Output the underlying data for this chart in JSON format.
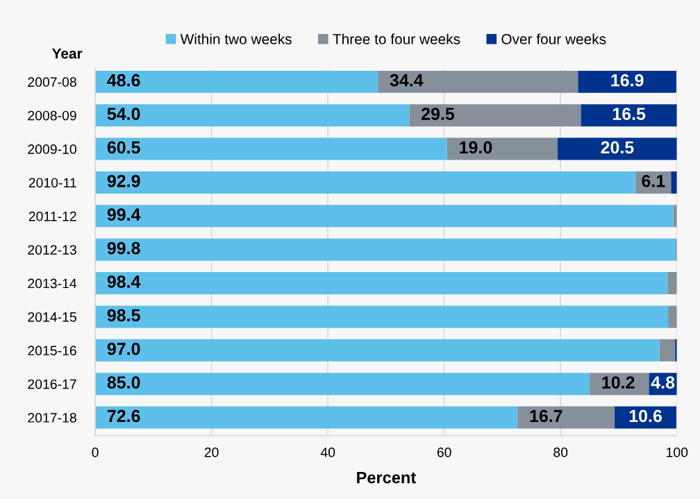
{
  "chart_data": {
    "type": "bar",
    "orientation": "horizontal",
    "stacked": true,
    "ylabel": "Year",
    "xlabel": "Percent",
    "categories": [
      "2007-08",
      "2008-09",
      "2009-10",
      "2010-11",
      "2011-12",
      "2012-13",
      "2013-14",
      "2014-15",
      "2015-16",
      "2016-17",
      "2017-18"
    ],
    "series": [
      {
        "name": "Within two weeks",
        "color": "#5ec0ea",
        "values": [
          48.6,
          54.0,
          60.5,
          92.9,
          99.4,
          99.8,
          98.4,
          98.5,
          97.0,
          85.0,
          72.6
        ],
        "value_labels": [
          "48.6",
          "54.0",
          "60.5",
          "92.9",
          "99.4",
          "99.8",
          "98.4",
          "98.5",
          "97.0",
          "85.0",
          "72.6"
        ]
      },
      {
        "name": "Three to four weeks",
        "color": "#85909b",
        "values": [
          34.4,
          29.5,
          19.0,
          6.1,
          0.6,
          0.2,
          1.6,
          1.5,
          2.7,
          10.2,
          16.7
        ],
        "value_labels": [
          "34.4",
          "29.5",
          "19.0",
          "6.1",
          null,
          null,
          null,
          null,
          null,
          "10.2",
          "16.7"
        ]
      },
      {
        "name": "Over four weeks",
        "color": "#00338e",
        "values": [
          16.9,
          16.5,
          20.5,
          1.0,
          0,
          0,
          0,
          0,
          0.3,
          4.8,
          10.6
        ],
        "value_labels": [
          "16.9",
          "16.5",
          "20.5",
          null,
          null,
          null,
          null,
          null,
          null,
          "4.8",
          "10.6"
        ]
      }
    ],
    "xlim": [
      0,
      100
    ],
    "xticks": [
      0,
      20,
      40,
      60,
      80,
      100
    ],
    "grid": "x",
    "legend": "top"
  }
}
